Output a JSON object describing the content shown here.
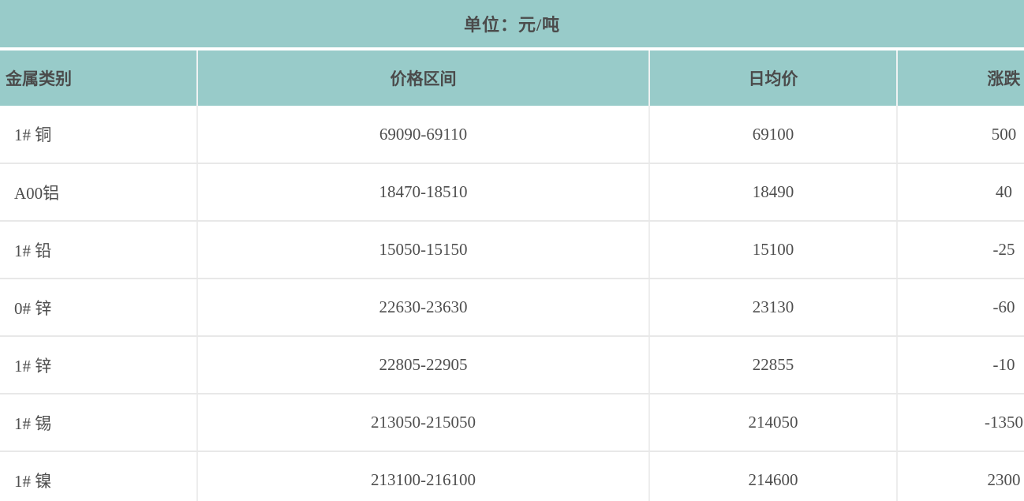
{
  "banner": {
    "unit_label": "单位：元/吨"
  },
  "table": {
    "columns": [
      {
        "key": "category",
        "label": "金属类别"
      },
      {
        "key": "range",
        "label": "价格区间"
      },
      {
        "key": "avg",
        "label": "日均价"
      },
      {
        "key": "change",
        "label": "涨跌"
      }
    ],
    "rows": [
      {
        "category": "1# 铜",
        "range": "69090-69110",
        "avg": "69100",
        "change": "500"
      },
      {
        "category": "A00铝",
        "range": "18470-18510",
        "avg": "18490",
        "change": "40"
      },
      {
        "category": "1# 铅",
        "range": "15050-15150",
        "avg": "15100",
        "change": "-25"
      },
      {
        "category": "0# 锌",
        "range": "22630-23630",
        "avg": "23130",
        "change": "-60"
      },
      {
        "category": "1# 锌",
        "range": "22805-22905",
        "avg": "22855",
        "change": "-10"
      },
      {
        "category": "1# 锡",
        "range": "213050-215050",
        "avg": "214050",
        "change": "-1350"
      },
      {
        "category": "1# 镍",
        "range": "213100-216100",
        "avg": "214600",
        "change": "2300"
      }
    ]
  },
  "colors": {
    "header_teal": "#98cbc9",
    "row_background": "#ffffff",
    "horizontal_border": "#e8e8e8",
    "vertical_border": "#ededed",
    "text": "#4b4b4b"
  },
  "chart_data": {
    "type": "table",
    "title": "单位：元/吨",
    "columns": [
      "金属类别",
      "价格区间",
      "日均价",
      "涨跌"
    ],
    "rows": [
      [
        "1# 铜",
        "69090-69110",
        69100,
        500
      ],
      [
        "A00铝",
        "18470-18510",
        18490,
        40
      ],
      [
        "1# 铅",
        "15050-15150",
        15100,
        -25
      ],
      [
        "0# 锌",
        "22630-23630",
        23130,
        -60
      ],
      [
        "1# 锌",
        "22805-22905",
        22855,
        -10
      ],
      [
        "1# 锡",
        "213050-215050",
        214050,
        -1350
      ],
      [
        "1# 镍",
        "213100-216100",
        214600,
        2300
      ]
    ]
  }
}
